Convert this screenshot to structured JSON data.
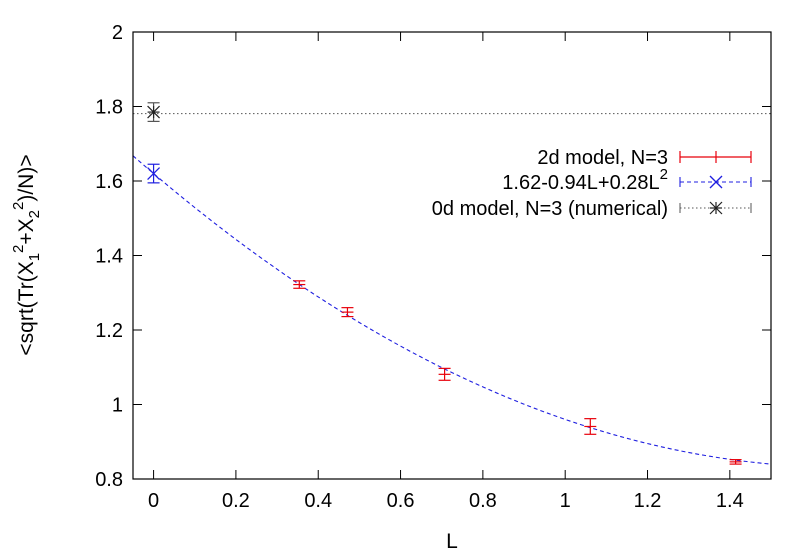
{
  "chart_data": {
    "type": "scatter",
    "title": "",
    "xlabel": "L",
    "ylabel_parts": {
      "prefix": "<sqrt(Tr(X",
      "sub1": "1",
      "sup1": "2",
      "mid": "+X",
      "sub2": "2",
      "sup2": "2",
      "suffix": ")/N)>"
    },
    "xlim": [
      -0.05,
      1.5
    ],
    "ylim": [
      0.8,
      2.0
    ],
    "xticks": [
      "0",
      "0.2",
      "0.4",
      "0.6",
      "0.8",
      "1",
      "1.2",
      "1.4"
    ],
    "yticks": [
      "0.8",
      "1",
      "1.2",
      "1.4",
      "1.6",
      "1.8",
      "2"
    ],
    "grid": false,
    "legend_position": "top-right",
    "series": [
      {
        "name": "2d model, N=3",
        "kind": "errorbars",
        "color": "#e8000b",
        "points": [
          {
            "x": 0.354,
            "y": 1.322,
            "err": 0.01
          },
          {
            "x": 0.471,
            "y": 1.248,
            "err": 0.012
          },
          {
            "x": 0.707,
            "y": 1.081,
            "err": 0.016
          },
          {
            "x": 1.061,
            "y": 0.941,
            "err": 0.021
          },
          {
            "x": 1.414,
            "y": 0.846,
            "err": 0.006
          }
        ]
      },
      {
        "name_parts": {
          "base": "1.62-0.94L+0.28L",
          "sup": "2"
        },
        "kind": "fit",
        "color": "#1f1fe0",
        "coefficients": [
          1.62,
          -0.94,
          0.28
        ],
        "marker_point": {
          "x": 0.0,
          "y": 1.62,
          "err": 0.025
        }
      },
      {
        "name": "0d model, N=3 (numerical)",
        "kind": "hline",
        "color": "#555555",
        "y": 1.781,
        "marker_point": {
          "x": 0.0,
          "y": 1.785,
          "err": 0.025
        }
      }
    ]
  }
}
